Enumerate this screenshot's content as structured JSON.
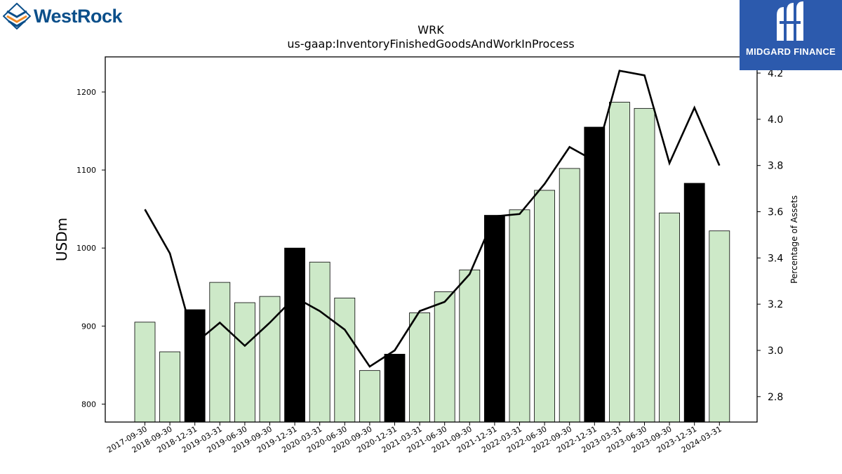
{
  "brand": {
    "name": "WestRock",
    "name_color": "#0b4f8a",
    "icon": "westrock-chevron-logo-icon"
  },
  "badge": {
    "name": "MIDGARD FINANCE",
    "background": "#2c5aad",
    "icon": "midgard-m-logo-icon"
  },
  "chart_data": {
    "type": "bar",
    "title": "WRK",
    "subtitle": "us-gaap:InventoryFinishedGoodsAndWorkInProcess",
    "ylabel": "USDm",
    "y2label": "Percentage of Assets",
    "ylim": [
      777,
      1245
    ],
    "y2lim": [
      2.69,
      4.27
    ],
    "yticks": [
      800,
      900,
      1000,
      1100,
      1200
    ],
    "y2ticks": [
      2.8,
      3.0,
      3.2,
      3.4,
      3.6,
      3.8,
      4.0,
      4.2
    ],
    "categories": [
      "2017-09-30",
      "2018-09-30",
      "2018-12-31",
      "2019-03-31",
      "2019-06-30",
      "2019-09-30",
      "2019-12-31",
      "2020-03-31",
      "2020-06-30",
      "2020-09-30",
      "2020-12-31",
      "2021-03-31",
      "2021-06-30",
      "2021-09-30",
      "2021-12-31",
      "2022-03-31",
      "2022-06-30",
      "2022-09-30",
      "2022-12-31",
      "2023-03-31",
      "2023-06-30",
      "2023-09-30",
      "2023-12-31",
      "2024-03-31"
    ],
    "series": [
      {
        "type": "bar",
        "values": [
          905,
          867,
          921,
          956,
          930,
          938,
          1000,
          982,
          936,
          843,
          864,
          917,
          944,
          972,
          1042,
          1049,
          1074,
          1102,
          1155,
          1187,
          1179,
          1045,
          1083,
          1022
        ]
      },
      {
        "type": "line",
        "axis": "right",
        "values": [
          3.61,
          3.42,
          3.03,
          3.12,
          3.02,
          3.12,
          3.23,
          3.17,
          3.09,
          2.93,
          3.0,
          3.17,
          3.21,
          3.33,
          3.58,
          3.59,
          3.72,
          3.88,
          3.82,
          4.21,
          4.19,
          3.81,
          4.05,
          3.8
        ]
      }
    ],
    "highlight_categories": [
      "2018-12-31",
      "2019-12-31",
      "2020-12-31",
      "2021-12-31",
      "2022-12-31",
      "2023-12-31"
    ],
    "colors": {
      "bar": "#cde9c8",
      "bar_highlight": "#000000",
      "bar_edge": "#000000",
      "line": "#000000"
    },
    "grid": false,
    "legend": "none"
  }
}
